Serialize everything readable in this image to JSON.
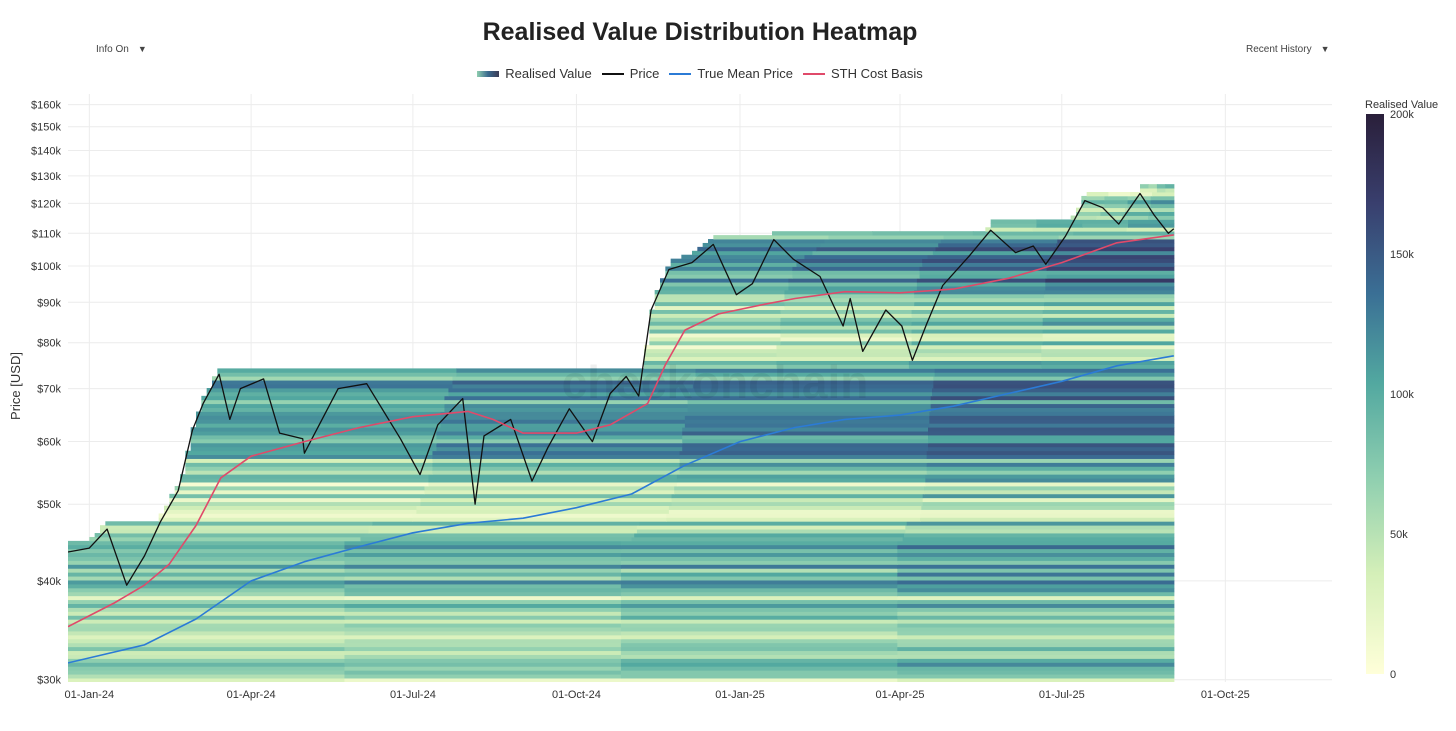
{
  "title": "Realised Value Distribution Heatmap",
  "controls": {
    "info_toggle": "Info On",
    "history_select": "Recent History",
    "caret": "▼"
  },
  "legend": [
    {
      "label": "Realised Value",
      "kind": "gradient"
    },
    {
      "label": "Price",
      "kind": "line",
      "color": "#111111"
    },
    {
      "label": "True Mean Price",
      "kind": "line",
      "color": "#2b7bd6"
    },
    {
      "label": "STH Cost Basis",
      "kind": "line",
      "color": "#e04a6a"
    }
  ],
  "watermark": "checkonchain",
  "chart_data": {
    "type": "heatmap",
    "title": "Realised Value Distribution Heatmap",
    "ylabel": "Price [USD]",
    "yscale": "log",
    "ylim": [
      29800,
      165000
    ],
    "xlim": [
      "2023-12-20",
      "2025-11-30"
    ],
    "x_ticks": [
      "01-Jan-24",
      "01-Apr-24",
      "01-Jul-24",
      "01-Oct-24",
      "01-Jan-25",
      "01-Apr-25",
      "01-Jul-25",
      "01-Oct-25"
    ],
    "x_tick_dates": [
      "2024-01-01",
      "2024-04-01",
      "2024-07-01",
      "2024-10-01",
      "2025-01-01",
      "2025-04-01",
      "2025-07-01",
      "2025-10-01"
    ],
    "y_ticks": [
      {
        "label": "$30k",
        "value": 30000
      },
      {
        "label": "$40k",
        "value": 40000
      },
      {
        "label": "$50k",
        "value": 50000
      },
      {
        "label": "$60k",
        "value": 60000
      },
      {
        "label": "$70k",
        "value": 70000
      },
      {
        "label": "$80k",
        "value": 80000
      },
      {
        "label": "$90k",
        "value": 90000
      },
      {
        "label": "$100k",
        "value": 100000
      },
      {
        "label": "$110k",
        "value": 110000
      },
      {
        "label": "$120k",
        "value": 120000
      },
      {
        "label": "$130k",
        "value": 130000
      },
      {
        "label": "$140k",
        "value": 140000
      },
      {
        "label": "$150k",
        "value": 150000
      },
      {
        "label": "$160k",
        "value": 160000
      }
    ],
    "colorbar": {
      "title": "Realised Value",
      "range": [
        0,
        200000
      ],
      "ticks": [
        {
          "label": "200k",
          "value": 200000
        },
        {
          "label": "150k",
          "value": 150000
        },
        {
          "label": "100k",
          "value": 100000
        },
        {
          "label": "50k",
          "value": 50000
        },
        {
          "label": "0",
          "value": 0
        }
      ],
      "colors": [
        "#ffffd9",
        "#d4efb8",
        "#8fcfb0",
        "#52a8a0",
        "#3a6f95",
        "#393f6e",
        "#2a1f3a"
      ]
    },
    "series": [
      {
        "name": "Price",
        "color": "#111111",
        "points": [
          [
            "2023-12-20",
            43500
          ],
          [
            "2024-01-01",
            44000
          ],
          [
            "2024-01-11",
            46500
          ],
          [
            "2024-01-22",
            39500
          ],
          [
            "2024-02-01",
            43000
          ],
          [
            "2024-02-10",
            47500
          ],
          [
            "2024-02-20",
            52000
          ],
          [
            "2024-02-28",
            62000
          ],
          [
            "2024-03-05",
            67000
          ],
          [
            "2024-03-14",
            73000
          ],
          [
            "2024-03-20",
            64000
          ],
          [
            "2024-03-26",
            70000
          ],
          [
            "2024-04-08",
            72000
          ],
          [
            "2024-04-17",
            61500
          ],
          [
            "2024-04-30",
            60500
          ],
          [
            "2024-05-01",
            58000
          ],
          [
            "2024-05-20",
            70000
          ],
          [
            "2024-06-05",
            71000
          ],
          [
            "2024-06-24",
            60500
          ],
          [
            "2024-07-05",
            54500
          ],
          [
            "2024-07-15",
            63000
          ],
          [
            "2024-07-29",
            68000
          ],
          [
            "2024-08-05",
            50000
          ],
          [
            "2024-08-10",
            61000
          ],
          [
            "2024-08-25",
            64000
          ],
          [
            "2024-09-06",
            53500
          ],
          [
            "2024-09-15",
            59000
          ],
          [
            "2024-09-27",
            66000
          ],
          [
            "2024-10-10",
            60000
          ],
          [
            "2024-10-20",
            69000
          ],
          [
            "2024-10-29",
            72500
          ],
          [
            "2024-11-05",
            68500
          ],
          [
            "2024-11-12",
            88000
          ],
          [
            "2024-11-22",
            99000
          ],
          [
            "2024-12-05",
            101000
          ],
          [
            "2024-12-17",
            106500
          ],
          [
            "2024-12-30",
            92000
          ],
          [
            "2025-01-08",
            95000
          ],
          [
            "2025-01-20",
            108000
          ],
          [
            "2025-01-31",
            102000
          ],
          [
            "2025-02-15",
            97000
          ],
          [
            "2025-02-28",
            84000
          ],
          [
            "2025-03-04",
            91000
          ],
          [
            "2025-03-11",
            78000
          ],
          [
            "2025-03-24",
            88000
          ],
          [
            "2025-04-02",
            84000
          ],
          [
            "2025-04-08",
            76000
          ],
          [
            "2025-04-16",
            84500
          ],
          [
            "2025-04-25",
            94500
          ],
          [
            "2025-05-10",
            103000
          ],
          [
            "2025-05-22",
            111000
          ],
          [
            "2025-06-05",
            104000
          ],
          [
            "2025-06-15",
            106000
          ],
          [
            "2025-06-22",
            100500
          ],
          [
            "2025-07-03",
            109000
          ],
          [
            "2025-07-14",
            121000
          ],
          [
            "2025-07-24",
            118500
          ],
          [
            "2025-08-02",
            113000
          ],
          [
            "2025-08-14",
            123500
          ],
          [
            "2025-08-22",
            116000
          ],
          [
            "2025-08-30",
            110000
          ],
          [
            "2025-09-02",
            111500
          ]
        ]
      },
      {
        "name": "True Mean Price",
        "color": "#2b7bd6",
        "points": [
          [
            "2023-12-20",
            31500
          ],
          [
            "2024-02-01",
            33200
          ],
          [
            "2024-03-01",
            35800
          ],
          [
            "2024-04-01",
            40000
          ],
          [
            "2024-05-01",
            42300
          ],
          [
            "2024-06-01",
            44200
          ],
          [
            "2024-07-01",
            46000
          ],
          [
            "2024-08-01",
            47300
          ],
          [
            "2024-09-01",
            48000
          ],
          [
            "2024-10-01",
            49500
          ],
          [
            "2024-11-01",
            51500
          ],
          [
            "2024-12-01",
            56000
          ],
          [
            "2025-01-01",
            60000
          ],
          [
            "2025-02-01",
            62500
          ],
          [
            "2025-03-01",
            64000
          ],
          [
            "2025-04-01",
            64800
          ],
          [
            "2025-05-01",
            66500
          ],
          [
            "2025-06-01",
            69000
          ],
          [
            "2025-07-01",
            71500
          ],
          [
            "2025-08-01",
            74800
          ],
          [
            "2025-09-02",
            77000
          ]
        ]
      },
      {
        "name": "STH Cost Basis",
        "color": "#e04a6a",
        "points": [
          [
            "2023-12-20",
            35000
          ],
          [
            "2024-01-15",
            37500
          ],
          [
            "2024-02-01",
            39500
          ],
          [
            "2024-02-15",
            42000
          ],
          [
            "2024-03-01",
            47000
          ],
          [
            "2024-03-15",
            54000
          ],
          [
            "2024-04-01",
            57500
          ],
          [
            "2024-05-01",
            60000
          ],
          [
            "2024-06-01",
            62500
          ],
          [
            "2024-07-01",
            64500
          ],
          [
            "2024-08-01",
            65500
          ],
          [
            "2024-08-15",
            64000
          ],
          [
            "2024-09-01",
            61500
          ],
          [
            "2024-10-01",
            61500
          ],
          [
            "2024-10-20",
            63000
          ],
          [
            "2024-11-10",
            67000
          ],
          [
            "2024-11-20",
            75000
          ],
          [
            "2024-12-01",
            83000
          ],
          [
            "2024-12-20",
            87000
          ],
          [
            "2025-01-15",
            89500
          ],
          [
            "2025-02-01",
            91000
          ],
          [
            "2025-03-01",
            92800
          ],
          [
            "2025-04-01",
            92500
          ],
          [
            "2025-05-01",
            93500
          ],
          [
            "2025-06-01",
            96500
          ],
          [
            "2025-07-01",
            101000
          ],
          [
            "2025-08-01",
            107000
          ],
          [
            "2025-09-02",
            109500
          ]
        ]
      }
    ]
  }
}
